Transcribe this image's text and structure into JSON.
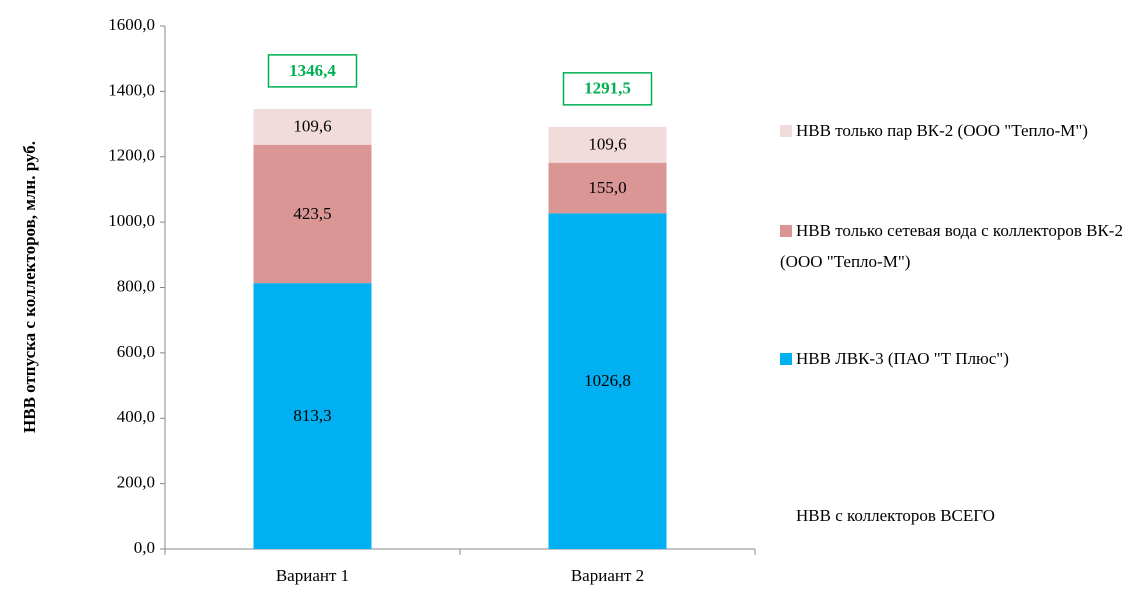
{
  "chart_data": {
    "type": "bar",
    "stacked": true,
    "y_label": "НВВ отпуска с коллекторов, млн. руб.",
    "categories": [
      "Вариант 1",
      "Вариант 2"
    ],
    "series": [
      {
        "name": "НВВ ЛВК-3 (ПАО \"Т Плюс\")",
        "color": "#00b0f0",
        "values": [
          813.3,
          1026.8
        ],
        "value_labels": [
          "813,3",
          "1026,8"
        ]
      },
      {
        "name": "НВВ только сетевая вода с коллекторов ВК-2 (ООО \"Тепло-М\")",
        "color": "#d99694",
        "values": [
          423.5,
          155.0
        ],
        "value_labels": [
          "423,5",
          "155,0"
        ]
      },
      {
        "name": "НВВ только пар ВК-2 (ООО \"Тепло-М\")",
        "color": "#f2dcdb",
        "values": [
          109.6,
          109.6
        ],
        "value_labels": [
          "109,6",
          "109,6"
        ]
      },
      {
        "name": "НВВ с коллекторов ВСЕГО",
        "color": "#00b050",
        "stack": false,
        "values": [
          1346.4,
          1291.5
        ],
        "value_labels": [
          "1346,4",
          "1291,5"
        ]
      }
    ],
    "ylim": [
      0,
      1600
    ],
    "yticks": [
      {
        "value": 0,
        "label": "0,0"
      },
      {
        "value": 200,
        "label": "200,0"
      },
      {
        "value": 400,
        "label": "400,0"
      },
      {
        "value": 600,
        "label": "600,0"
      },
      {
        "value": 800,
        "label": "800,0"
      },
      {
        "value": 1000,
        "label": "1000,0"
      },
      {
        "value": 1200,
        "label": "1200,0"
      },
      {
        "value": 1400,
        "label": "1400,0"
      },
      {
        "value": 1600,
        "label": "1600,0"
      }
    ],
    "grid": false
  }
}
